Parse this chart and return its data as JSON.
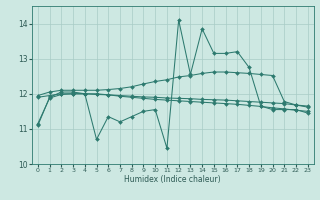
{
  "xlabel": "Humidex (Indice chaleur)",
  "xlim": [
    -0.5,
    23.5
  ],
  "ylim": [
    10,
    14.5
  ],
  "yticks": [
    10,
    11,
    12,
    13,
    14
  ],
  "xticks": [
    0,
    1,
    2,
    3,
    4,
    5,
    6,
    7,
    8,
    9,
    10,
    11,
    12,
    13,
    14,
    15,
    16,
    17,
    18,
    19,
    20,
    21,
    22,
    23
  ],
  "background_color": "#cde8e2",
  "grid_color": "#a8ccc6",
  "line_color": "#2d7a6f",
  "line1_y": [
    11.1,
    11.9,
    12.05,
    12.05,
    12.0,
    10.7,
    11.35,
    11.2,
    11.35,
    11.5,
    11.55,
    10.45,
    14.1,
    12.55,
    13.85,
    13.15,
    13.15,
    13.2,
    12.75,
    11.65,
    11.55,
    11.55,
    11.55,
    11.45
  ],
  "line2_y": [
    11.95,
    12.05,
    12.1,
    12.1,
    12.1,
    12.1,
    12.12,
    12.15,
    12.2,
    12.28,
    12.35,
    12.4,
    12.48,
    12.52,
    12.58,
    12.62,
    12.62,
    12.6,
    12.58,
    12.55,
    12.52,
    11.78,
    11.68,
    11.62
  ],
  "line3_y": [
    11.9,
    11.95,
    12.0,
    12.0,
    12.0,
    11.98,
    11.97,
    11.95,
    11.93,
    11.91,
    11.9,
    11.88,
    11.87,
    11.86,
    11.84,
    11.83,
    11.82,
    11.8,
    11.78,
    11.76,
    11.74,
    11.72,
    11.68,
    11.65
  ],
  "line4_y": [
    11.15,
    11.88,
    11.98,
    12.0,
    12.0,
    12.0,
    11.97,
    11.93,
    11.9,
    11.87,
    11.84,
    11.82,
    11.8,
    11.78,
    11.76,
    11.74,
    11.72,
    11.7,
    11.67,
    11.64,
    11.6,
    11.57,
    11.53,
    11.5
  ]
}
